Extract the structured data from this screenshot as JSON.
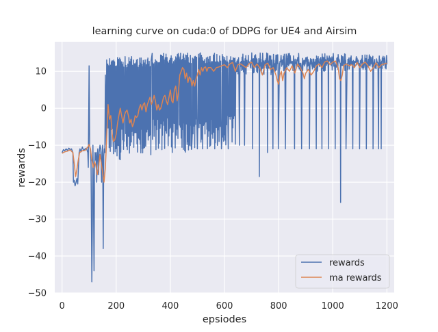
{
  "chart_data": {
    "type": "line",
    "title": "learning curve on cuda:0 of DDPG for UE4 and Airsim",
    "xlabel": "epsiodes",
    "ylabel": "rewards",
    "xlim": [
      -27,
      1227
    ],
    "ylim": [
      -50,
      18
    ],
    "xticks": [
      0,
      200,
      400,
      600,
      800,
      1000,
      1200
    ],
    "yticks": [
      -50,
      -40,
      -30,
      -20,
      -10,
      0,
      10
    ],
    "grid": true,
    "background": "#EAEAF2",
    "legend": {
      "placement": "bottom-right"
    },
    "series": [
      {
        "name": "rewards",
        "color": "#4C72B0",
        "anchors": [
          [
            0,
            -12
          ],
          [
            5,
            -11.2
          ],
          [
            10,
            -11.5
          ],
          [
            15,
            -11
          ],
          [
            20,
            -11.4
          ],
          [
            25,
            -10.8
          ],
          [
            30,
            -11.2
          ],
          [
            35,
            -11
          ],
          [
            40,
            -12
          ],
          [
            42,
            -20
          ],
          [
            45,
            -19.5
          ],
          [
            48,
            -21
          ],
          [
            52,
            -20
          ],
          [
            55,
            -19
          ],
          [
            58,
            -20.5
          ],
          [
            60,
            -17
          ],
          [
            63,
            -12
          ],
          [
            66,
            -11
          ],
          [
            70,
            -11.8
          ],
          [
            75,
            -10.5
          ],
          [
            80,
            -11.5
          ],
          [
            85,
            -11
          ],
          [
            90,
            -10.8
          ],
          [
            95,
            -12
          ],
          [
            97,
            -16
          ],
          [
            100,
            11.5
          ],
          [
            102,
            -10
          ],
          [
            105,
            -12
          ],
          [
            107,
            -15
          ],
          [
            110,
            -47
          ],
          [
            112,
            -30
          ],
          [
            114,
            -10
          ],
          [
            116,
            -25
          ],
          [
            118,
            -44
          ],
          [
            120,
            -18
          ],
          [
            122,
            -12
          ],
          [
            124,
            -14
          ],
          [
            126,
            -12
          ],
          [
            128,
            -20
          ],
          [
            130,
            -13
          ],
          [
            132,
            -11
          ],
          [
            135,
            -18
          ],
          [
            137,
            -12
          ],
          [
            140,
            -10
          ],
          [
            143,
            -11
          ],
          [
            146,
            -20
          ],
          [
            148,
            -12
          ],
          [
            150,
            -10
          ],
          [
            152,
            -38
          ],
          [
            154,
            -13
          ],
          [
            156,
            -11
          ],
          [
            158,
            -12
          ],
          [
            160,
            9
          ],
          [
            163,
            -10
          ]
        ],
        "bursts": [
          {
            "from": 160,
            "to": 230,
            "lo": -14,
            "hi": 14
          },
          {
            "from": 230,
            "to": 330,
            "lo": -13,
            "hi": 14
          },
          {
            "from": 330,
            "to": 430,
            "lo": -12,
            "hi": 15
          },
          {
            "from": 430,
            "to": 520,
            "lo": -12,
            "hi": 15
          },
          {
            "from": 520,
            "to": 640,
            "lo": -11,
            "hi": 15
          },
          {
            "from": 640,
            "to": 800,
            "lo": 9,
            "hi": 15
          },
          {
            "from": 800,
            "to": 1050,
            "lo": 10,
            "hi": 15
          },
          {
            "from": 1050,
            "to": 1200,
            "lo": 10.5,
            "hi": 14.5
          }
        ],
        "dips": [
          [
            470,
            -10
          ],
          [
            480,
            -11
          ],
          [
            500,
            -11
          ],
          [
            520,
            -11
          ],
          [
            550,
            -10
          ],
          [
            565,
            -11
          ],
          [
            590,
            -11
          ],
          [
            615,
            -11
          ],
          [
            655,
            -10
          ],
          [
            675,
            -10
          ],
          [
            705,
            -11
          ],
          [
            730,
            -18.5
          ],
          [
            760,
            -12
          ],
          [
            780,
            -11
          ],
          [
            800,
            -11
          ],
          [
            825,
            -11
          ],
          [
            860,
            -11
          ],
          [
            885,
            -11
          ],
          [
            915,
            -11
          ],
          [
            940,
            -11
          ],
          [
            960,
            -11
          ],
          [
            985,
            -11
          ],
          [
            1010,
            -11
          ],
          [
            1030,
            -25.5
          ],
          [
            1050,
            -11
          ],
          [
            1075,
            -11
          ],
          [
            1100,
            -11
          ],
          [
            1125,
            -11
          ],
          [
            1150,
            -11
          ],
          [
            1170,
            -11
          ],
          [
            1180,
            -11
          ]
        ]
      },
      {
        "name": "ma rewards",
        "color": "#DD8452",
        "points": [
          [
            0,
            -12.2
          ],
          [
            10,
            -11.8
          ],
          [
            20,
            -11.6
          ],
          [
            30,
            -11.3
          ],
          [
            40,
            -12
          ],
          [
            45,
            -15
          ],
          [
            50,
            -18.5
          ],
          [
            55,
            -16.5
          ],
          [
            60,
            -14
          ],
          [
            65,
            -12
          ],
          [
            75,
            -11.5
          ],
          [
            85,
            -11.4
          ],
          [
            95,
            -10.5
          ],
          [
            100,
            -9.8
          ],
          [
            105,
            -11
          ],
          [
            110,
            -14
          ],
          [
            115,
            -16
          ],
          [
            120,
            -14.5
          ],
          [
            125,
            -15.5
          ],
          [
            130,
            -18
          ],
          [
            135,
            -16
          ],
          [
            140,
            -12.5
          ],
          [
            145,
            -15
          ],
          [
            150,
            -17.5
          ],
          [
            155,
            -20
          ],
          [
            160,
            -16
          ],
          [
            165,
            -8
          ],
          [
            170,
            1
          ],
          [
            175,
            -3
          ],
          [
            180,
            -2
          ],
          [
            185,
            -7
          ],
          [
            190,
            -9
          ],
          [
            195,
            -8.5
          ],
          [
            200,
            -7
          ],
          [
            205,
            -4
          ],
          [
            210,
            -2
          ],
          [
            215,
            0
          ],
          [
            220,
            -2
          ],
          [
            225,
            -4
          ],
          [
            230,
            -2
          ],
          [
            235,
            -1
          ],
          [
            240,
            -0.5
          ],
          [
            245,
            -2
          ],
          [
            250,
            -4
          ],
          [
            255,
            -3
          ],
          [
            260,
            -5
          ],
          [
            265,
            -4
          ],
          [
            270,
            -2
          ],
          [
            275,
            -2.5
          ],
          [
            280,
            -2
          ],
          [
            285,
            0
          ],
          [
            290,
            1
          ],
          [
            295,
            -0.5
          ],
          [
            300,
            1
          ],
          [
            305,
            1.5
          ],
          [
            310,
            -1
          ],
          [
            315,
            1
          ],
          [
            320,
            2
          ],
          [
            325,
            3
          ],
          [
            330,
            1
          ],
          [
            335,
            2
          ],
          [
            340,
            3.5
          ],
          [
            345,
            2
          ],
          [
            350,
            -0.5
          ],
          [
            355,
            1
          ],
          [
            360,
            -0.5
          ],
          [
            365,
            0
          ],
          [
            370,
            1.5
          ],
          [
            375,
            3
          ],
          [
            380,
            3.5
          ],
          [
            385,
            2
          ],
          [
            390,
            1
          ],
          [
            395,
            3
          ],
          [
            400,
            5
          ],
          [
            405,
            2
          ],
          [
            410,
            1.5
          ],
          [
            415,
            5
          ],
          [
            420,
            6
          ],
          [
            425,
            2
          ],
          [
            430,
            4.5
          ],
          [
            435,
            9
          ],
          [
            440,
            10
          ],
          [
            445,
            11
          ],
          [
            450,
            10.5
          ],
          [
            455,
            8
          ],
          [
            460,
            9.5
          ],
          [
            465,
            7
          ],
          [
            470,
            8.5
          ],
          [
            475,
            8
          ],
          [
            480,
            6
          ],
          [
            485,
            7.5
          ],
          [
            490,
            6
          ],
          [
            495,
            8
          ],
          [
            500,
            9
          ],
          [
            505,
            10.5
          ],
          [
            510,
            9
          ],
          [
            515,
            11
          ],
          [
            520,
            10
          ],
          [
            525,
            11
          ],
          [
            530,
            11.2
          ],
          [
            535,
            10
          ],
          [
            540,
            11
          ],
          [
            550,
            11
          ],
          [
            560,
            10
          ],
          [
            570,
            11
          ],
          [
            580,
            11.2
          ],
          [
            590,
            11.5
          ],
          [
            600,
            11.8
          ],
          [
            610,
            11
          ],
          [
            620,
            12
          ],
          [
            630,
            12.4
          ],
          [
            640,
            10
          ],
          [
            650,
            11.8
          ],
          [
            660,
            12
          ],
          [
            670,
            11.5
          ],
          [
            680,
            11
          ],
          [
            690,
            12
          ],
          [
            700,
            12.5
          ],
          [
            710,
            11
          ],
          [
            720,
            12
          ],
          [
            730,
            11
          ],
          [
            740,
            9
          ],
          [
            750,
            11.8
          ],
          [
            760,
            12.2
          ],
          [
            770,
            10.5
          ],
          [
            780,
            11
          ],
          [
            790,
            9
          ],
          [
            795,
            7.5
          ],
          [
            800,
            6.5
          ],
          [
            805,
            9
          ],
          [
            810,
            10
          ],
          [
            815,
            7.5
          ],
          [
            820,
            9.5
          ],
          [
            830,
            11
          ],
          [
            840,
            10
          ],
          [
            850,
            11.5
          ],
          [
            860,
            9.5
          ],
          [
            870,
            12
          ],
          [
            880,
            11
          ],
          [
            890,
            9.5
          ],
          [
            895,
            8
          ],
          [
            900,
            9.5
          ],
          [
            910,
            10.5
          ],
          [
            920,
            9
          ],
          [
            930,
            10
          ],
          [
            940,
            11.5
          ],
          [
            950,
            12
          ],
          [
            960,
            11
          ],
          [
            970,
            12.5
          ],
          [
            980,
            12.8
          ],
          [
            990,
            11.8
          ],
          [
            1000,
            12.5
          ],
          [
            1010,
            12.8
          ],
          [
            1020,
            11
          ],
          [
            1025,
            8
          ],
          [
            1030,
            7.5
          ],
          [
            1035,
            9
          ],
          [
            1040,
            11.5
          ],
          [
            1050,
            12
          ],
          [
            1060,
            11.5
          ],
          [
            1070,
            11.8
          ],
          [
            1080,
            11
          ],
          [
            1090,
            12.4
          ],
          [
            1100,
            11
          ],
          [
            1110,
            12
          ],
          [
            1120,
            12.5
          ],
          [
            1130,
            11.5
          ],
          [
            1140,
            10
          ],
          [
            1150,
            11
          ],
          [
            1160,
            12.3
          ],
          [
            1170,
            11
          ],
          [
            1180,
            11.8
          ],
          [
            1190,
            12
          ],
          [
            1200,
            12.2
          ]
        ]
      }
    ]
  }
}
